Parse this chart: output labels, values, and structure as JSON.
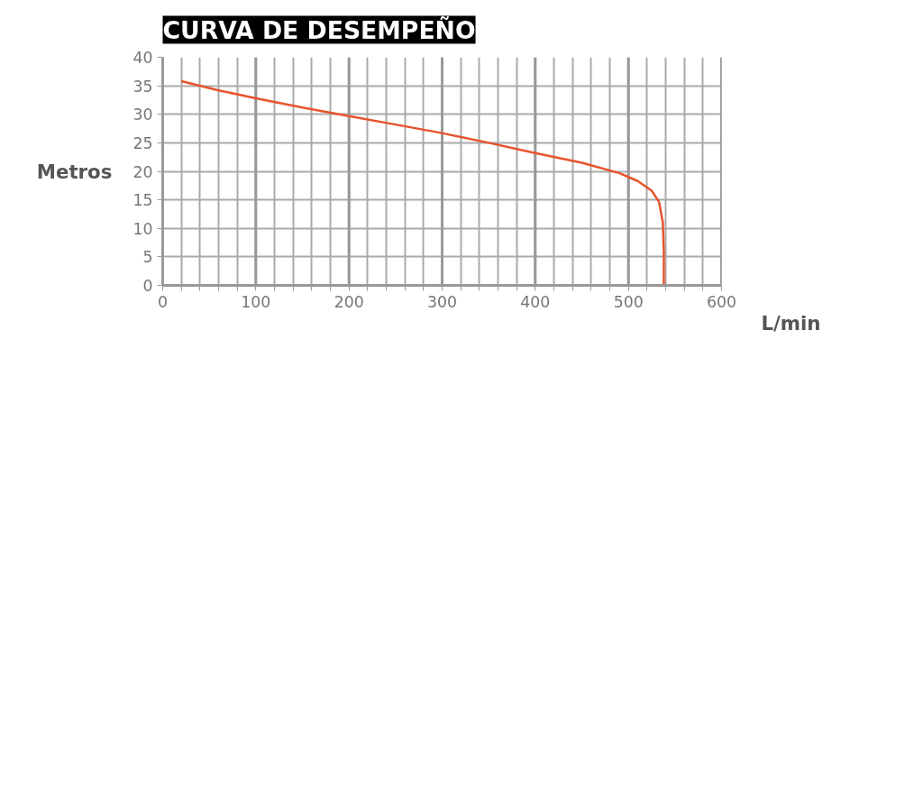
{
  "chart_data": {
    "type": "line",
    "title": "CURVA DE DESEMPEÑO",
    "xlabel": "L/min",
    "ylabel": "Metros",
    "x": [
      20,
      60,
      100,
      150,
      200,
      250,
      300,
      350,
      400,
      450,
      490,
      510,
      525,
      533,
      537,
      538,
      538
    ],
    "series": [
      {
        "color": "#e8532b",
        "values": [
          35.8,
          34.2,
          32.8,
          31.2,
          29.7,
          28.2,
          26.7,
          25.0,
          23.2,
          21.5,
          19.7,
          18.3,
          16.6,
          14.6,
          11,
          6,
          0
        ]
      }
    ],
    "xlim": [
      0,
      600
    ],
    "ylim": [
      0,
      40
    ],
    "xticks": [
      0,
      {
        "value": 20,
        "label": null
      },
      {
        "value": 40,
        "label": null
      },
      {
        "value": 60,
        "label": null
      },
      {
        "value": 80,
        "label": null
      },
      100,
      {
        "value": 120,
        "label": null
      },
      {
        "value": 140,
        "label": null
      },
      {
        "value": 160,
        "label": null
      },
      {
        "value": 180,
        "label": null
      },
      200,
      {
        "value": 220,
        "label": null
      },
      {
        "value": 240,
        "label": null
      },
      {
        "value": 260,
        "label": null
      },
      {
        "value": 280,
        "label": null
      },
      300,
      {
        "value": 320,
        "label": null
      },
      {
        "value": 340,
        "label": null
      },
      {
        "value": 360,
        "label": null
      },
      {
        "value": 380,
        "label": null
      },
      400,
      {
        "value": 420,
        "label": null
      },
      {
        "value": 440,
        "label": null
      },
      {
        "value": 460,
        "label": null
      },
      {
        "value": 480,
        "label": null
      },
      500,
      {
        "value": 520,
        "label": null
      },
      {
        "value": 540,
        "label": null
      },
      {
        "value": 560,
        "label": null
      },
      {
        "value": 580,
        "label": null
      },
      600
    ],
    "yticks": [
      0,
      5,
      10,
      15,
      20,
      25,
      30,
      35,
      40
    ],
    "grid": true,
    "marker": "none",
    "line_style": "solid"
  }
}
